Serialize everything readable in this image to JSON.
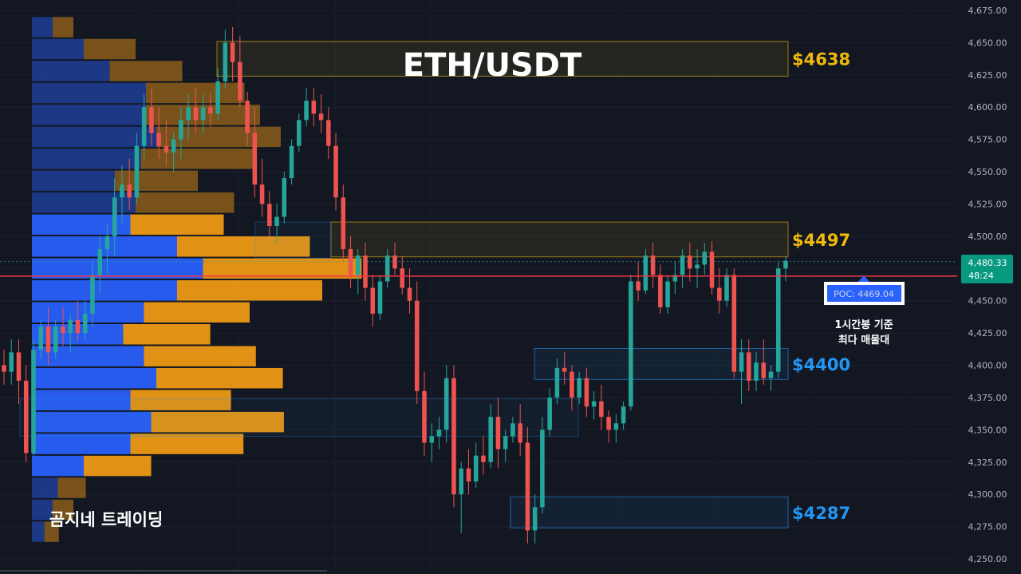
{
  "title": "ETH/USDT",
  "watermark": "곰지네 트레이딩",
  "price_tag": {
    "price": "4,480.33",
    "countdown": "48:24"
  },
  "poc": {
    "label": "POC: 4469.04",
    "note_line1": "1시간봉 기준",
    "note_line2": "최다 매물대"
  },
  "colors": {
    "background": "#131722",
    "up": "#26a69a",
    "down": "#ef5350",
    "poc_line": "#f23645",
    "gold": "#f0b90b",
    "blue": "#2196f3",
    "vp_blue": "#2962ff",
    "vp_orange": "#f39c12"
  },
  "chart_data": {
    "type": "candlestick",
    "title": "ETH/USDT",
    "y_axis": {
      "range": [
        4245,
        4680
      ],
      "ticks": [
        4250,
        4275,
        4300,
        4325,
        4350,
        4375,
        4400,
        4425,
        4450,
        4475,
        4500,
        4525,
        4550,
        4575,
        4600,
        4625,
        4650,
        4675
      ],
      "tick_labels": [
        "4,250.00",
        "4,275.00",
        "4,300.00",
        "4,325.00",
        "4,350.00",
        "4,375.00",
        "4,400.00",
        "4,425.00",
        "4,450.00",
        "4,475.00",
        "4,500.00",
        "4,525.00",
        "4,550.00",
        "4,575.00",
        "4,600.00",
        "4,625.00",
        "4,650.00",
        "4,675.00"
      ],
      "position": "right"
    },
    "current_price": 4480.33,
    "poc_price": 4469.04,
    "zones": [
      {
        "label": "$4638",
        "low": 4624,
        "high": 4651,
        "color": "gold"
      },
      {
        "label": "$4497",
        "low": 4484,
        "high": 4511,
        "color": "gold"
      },
      {
        "label": "$4400",
        "low": 4389,
        "high": 4413,
        "color": "blue"
      },
      {
        "label": "$4287",
        "low": 4274,
        "high": 4298,
        "color": "blue"
      }
    ],
    "volume_profile": {
      "bin_size": 17,
      "bins": [
        {
          "price": 4662,
          "buy": 20,
          "sell": 20
        },
        {
          "price": 4645,
          "buy": 50,
          "sell": 50
        },
        {
          "price": 4628,
          "buy": 75,
          "sell": 70
        },
        {
          "price": 4611,
          "buy": 110,
          "sell": 95
        },
        {
          "price": 4594,
          "buy": 110,
          "sell": 110
        },
        {
          "price": 4577,
          "buy": 120,
          "sell": 120
        },
        {
          "price": 4560,
          "buy": 105,
          "sell": 110
        },
        {
          "price": 4543,
          "buy": 80,
          "sell": 80
        },
        {
          "price": 4526,
          "buy": 100,
          "sell": 95
        },
        {
          "price": 4509,
          "buy": 95,
          "sell": 90
        },
        {
          "price": 4492,
          "buy": 140,
          "sell": 128
        },
        {
          "price": 4475,
          "buy": 165,
          "sell": 153
        },
        {
          "price": 4458,
          "buy": 140,
          "sell": 140
        },
        {
          "price": 4441,
          "buy": 108,
          "sell": 102
        },
        {
          "price": 4424,
          "buy": 88,
          "sell": 84
        },
        {
          "price": 4407,
          "buy": 108,
          "sell": 108
        },
        {
          "price": 4390,
          "buy": 120,
          "sell": 122
        },
        {
          "price": 4373,
          "buy": 95,
          "sell": 97
        },
        {
          "price": 4356,
          "buy": 115,
          "sell": 128
        },
        {
          "price": 4339,
          "buy": 95,
          "sell": 109
        },
        {
          "price": 4322,
          "buy": 50,
          "sell": 65
        },
        {
          "price": 4305,
          "buy": 25,
          "sell": 27
        },
        {
          "price": 4288,
          "buy": 20,
          "sell": 20
        },
        {
          "price": 4271,
          "buy": 12,
          "sell": 14
        }
      ]
    },
    "candles": [
      [
        4400,
        4412,
        4385,
        4395
      ],
      [
        4395,
        4420,
        4385,
        4410
      ],
      [
        4410,
        4420,
        4370,
        4388
      ],
      [
        4388,
        4400,
        4325,
        4332
      ],
      [
        4332,
        4420,
        4330,
        4412
      ],
      [
        4412,
        4435,
        4405,
        4430
      ],
      [
        4430,
        4445,
        4400,
        4410
      ],
      [
        4410,
        4435,
        4405,
        4430
      ],
      [
        4430,
        4445,
        4415,
        4425
      ],
      [
        4425,
        4440,
        4410,
        4435
      ],
      [
        4435,
        4450,
        4418,
        4425
      ],
      [
        4425,
        4450,
        4420,
        4440
      ],
      [
        4440,
        4480,
        4430,
        4470
      ],
      [
        4470,
        4500,
        4455,
        4490
      ],
      [
        4490,
        4510,
        4470,
        4500
      ],
      [
        4500,
        4545,
        4485,
        4530
      ],
      [
        4530,
        4555,
        4510,
        4540
      ],
      [
        4540,
        4560,
        4520,
        4530
      ],
      [
        4530,
        4580,
        4525,
        4570
      ],
      [
        4570,
        4610,
        4560,
        4600
      ],
      [
        4600,
        4615,
        4570,
        4580
      ],
      [
        4580,
        4600,
        4560,
        4570
      ],
      [
        4570,
        4590,
        4555,
        4565
      ],
      [
        4565,
        4580,
        4550,
        4575
      ],
      [
        4575,
        4600,
        4560,
        4590
      ],
      [
        4590,
        4610,
        4575,
        4600
      ],
      [
        4600,
        4615,
        4580,
        4590
      ],
      [
        4590,
        4610,
        4580,
        4600
      ],
      [
        4600,
        4610,
        4585,
        4595
      ],
      [
        4595,
        4630,
        4590,
        4620
      ],
      [
        4620,
        4660,
        4615,
        4650
      ],
      [
        4650,
        4662,
        4620,
        4635
      ],
      [
        4635,
        4655,
        4600,
        4605
      ],
      [
        4605,
        4612,
        4570,
        4580
      ],
      [
        4580,
        4600,
        4530,
        4540
      ],
      [
        4540,
        4560,
        4515,
        4525
      ],
      [
        4525,
        4535,
        4500,
        4508
      ],
      [
        4508,
        4525,
        4495,
        4515
      ],
      [
        4515,
        4550,
        4510,
        4545
      ],
      [
        4545,
        4575,
        4540,
        4570
      ],
      [
        4570,
        4595,
        4565,
        4590
      ],
      [
        4590,
        4615,
        4585,
        4605
      ],
      [
        4605,
        4615,
        4585,
        4595
      ],
      [
        4595,
        4610,
        4580,
        4590
      ],
      [
        4590,
        4600,
        4560,
        4570
      ],
      [
        4570,
        4580,
        4520,
        4530
      ],
      [
        4530,
        4540,
        4480,
        4490
      ],
      [
        4490,
        4500,
        4460,
        4470
      ],
      [
        4470,
        4490,
        4455,
        4485
      ],
      [
        4485,
        4495,
        4450,
        4460
      ],
      [
        4460,
        4470,
        4430,
        4440
      ],
      [
        4440,
        4470,
        4435,
        4465
      ],
      [
        4465,
        4490,
        4460,
        4485
      ],
      [
        4485,
        4495,
        4470,
        4475
      ],
      [
        4475,
        4485,
        4455,
        4460
      ],
      [
        4460,
        4475,
        4440,
        4450
      ],
      [
        4450,
        4465,
        4370,
        4380
      ],
      [
        4380,
        4395,
        4330,
        4340
      ],
      [
        4340,
        4355,
        4325,
        4345
      ],
      [
        4345,
        4360,
        4335,
        4350
      ],
      [
        4350,
        4400,
        4340,
        4390
      ],
      [
        4390,
        4400,
        4290,
        4300
      ],
      [
        4300,
        4325,
        4270,
        4320
      ],
      [
        4320,
        4335,
        4300,
        4310
      ],
      [
        4310,
        4340,
        4305,
        4330
      ],
      [
        4330,
        4345,
        4315,
        4325
      ],
      [
        4325,
        4370,
        4320,
        4360
      ],
      [
        4360,
        4375,
        4320,
        4335
      ],
      [
        4335,
        4350,
        4325,
        4345
      ],
      [
        4345,
        4360,
        4340,
        4355
      ],
      [
        4355,
        4370,
        4330,
        4340
      ],
      [
        4340,
        4352,
        4262,
        4272
      ],
      [
        4272,
        4300,
        4262,
        4290
      ],
      [
        4290,
        4360,
        4285,
        4350
      ],
      [
        4350,
        4382,
        4345,
        4375
      ],
      [
        4375,
        4405,
        4370,
        4398
      ],
      [
        4398,
        4410,
        4385,
        4395
      ],
      [
        4395,
        4400,
        4365,
        4375
      ],
      [
        4375,
        4395,
        4370,
        4390
      ],
      [
        4390,
        4398,
        4360,
        4368
      ],
      [
        4368,
        4380,
        4358,
        4372
      ],
      [
        4372,
        4385,
        4350,
        4360
      ],
      [
        4360,
        4365,
        4340,
        4350
      ],
      [
        4350,
        4362,
        4340,
        4355
      ],
      [
        4355,
        4372,
        4350,
        4368
      ],
      [
        4368,
        4470,
        4365,
        4465
      ],
      [
        4465,
        4480,
        4450,
        4458
      ],
      [
        4458,
        4490,
        4455,
        4485
      ],
      [
        4485,
        4495,
        4460,
        4470
      ],
      [
        4470,
        4478,
        4440,
        4445
      ],
      [
        4445,
        4470,
        4440,
        4465
      ],
      [
        4465,
        4480,
        4455,
        4470
      ],
      [
        4470,
        4490,
        4460,
        4485
      ],
      [
        4485,
        4495,
        4465,
        4475
      ],
      [
        4475,
        4490,
        4460,
        4478
      ],
      [
        4478,
        4495,
        4470,
        4488
      ],
      [
        4488,
        4496,
        4455,
        4460
      ],
      [
        4460,
        4475,
        4440,
        4450
      ],
      [
        4450,
        4475,
        4445,
        4470
      ],
      [
        4470,
        4475,
        4390,
        4395
      ],
      [
        4395,
        4420,
        4370,
        4410
      ],
      [
        4410,
        4420,
        4380,
        4388
      ],
      [
        4388,
        4410,
        4380,
        4402
      ],
      [
        4402,
        4420,
        4385,
        4390
      ],
      [
        4390,
        4400,
        4380,
        4395
      ],
      [
        4395,
        4480,
        4390,
        4475
      ],
      [
        4475,
        4485,
        4465,
        4481
      ]
    ]
  }
}
